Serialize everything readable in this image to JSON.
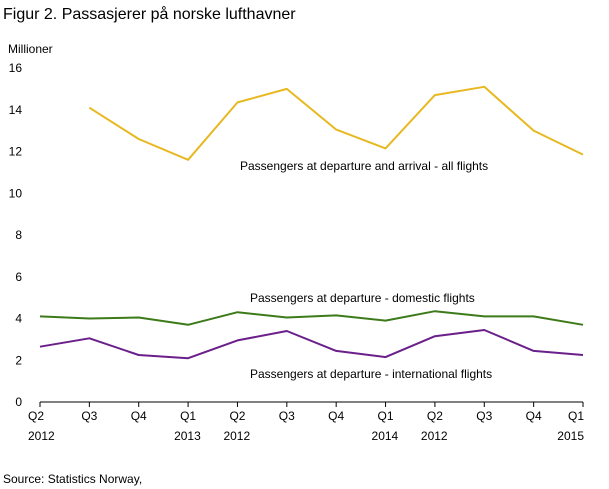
{
  "title": "Figur 2. Passasjerer på norske lufthavner",
  "source": "Source: Statistics Norway,",
  "chart_data": {
    "type": "line",
    "ylabel": "Millioner",
    "ylim": [
      0,
      16
    ],
    "yticks": [
      0,
      2,
      4,
      6,
      8,
      10,
      12,
      14,
      16
    ],
    "grid": false,
    "categories": [
      "Q2 2012",
      "Q3",
      "Q4",
      "Q1 2013",
      "Q2 2012",
      "Q3",
      "Q4",
      "Q1 2014",
      "Q2 2012",
      "Q3",
      "Q4",
      "Q1 2015"
    ],
    "tick_labels": [
      {
        "quarter": "Q2",
        "year": "2012"
      },
      {
        "quarter": "Q3",
        "year": ""
      },
      {
        "quarter": "Q4",
        "year": ""
      },
      {
        "quarter": "Q1",
        "year": "2013"
      },
      {
        "quarter": "Q2",
        "year": "2012"
      },
      {
        "quarter": "Q3",
        "year": ""
      },
      {
        "quarter": "Q4",
        "year": ""
      },
      {
        "quarter": "Q1",
        "year": "2014"
      },
      {
        "quarter": "Q2",
        "year": "2012"
      },
      {
        "quarter": "Q3",
        "year": ""
      },
      {
        "quarter": "Q4",
        "year": ""
      },
      {
        "quarter": "Q1",
        "year": "2015"
      }
    ],
    "series": [
      {
        "name": "Passengers  at departure  and arrival - all flights",
        "color": "#e8b820",
        "values": [
          null,
          14.1,
          12.6,
          11.6,
          14.35,
          15.0,
          13.05,
          12.15,
          14.7,
          15.1,
          13.0,
          11.85
        ]
      },
      {
        "name": "Passengers  at departure  - domestic  flights",
        "color": "#3d7a1a",
        "values": [
          4.1,
          4.0,
          4.05,
          3.7,
          4.3,
          4.05,
          4.15,
          3.9,
          4.35,
          4.1,
          4.1,
          3.7
        ]
      },
      {
        "name": "Passengers  at departure  - international  flights",
        "color": "#6a1f8a",
        "values": [
          2.65,
          3.05,
          2.25,
          2.1,
          2.95,
          3.4,
          2.45,
          2.15,
          3.15,
          3.45,
          2.45,
          2.25
        ]
      }
    ]
  }
}
